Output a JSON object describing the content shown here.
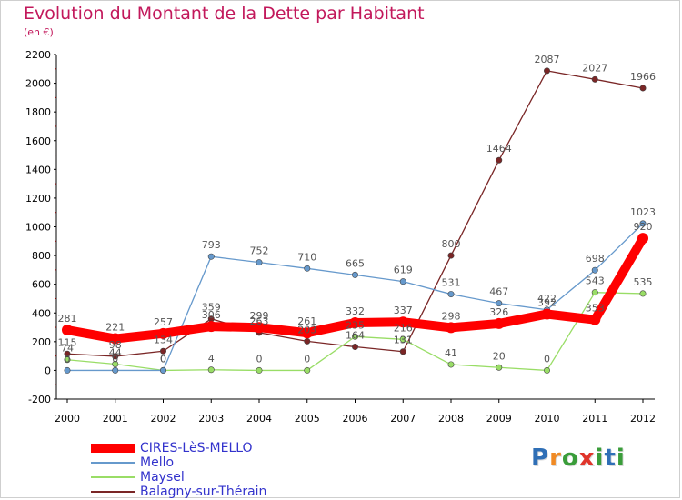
{
  "header": {
    "title": "Evolution du Montant de la Dette par Habitant",
    "unit": "(en €)"
  },
  "logo": {
    "text": "Proxiti",
    "letters": [
      "P",
      "r",
      "o",
      "x",
      "i",
      "t",
      "i"
    ],
    "colors": [
      "#2f6fb6",
      "#f08a24",
      "#3a9d3a",
      "#e0352b",
      "#3a9d3a",
      "#2f6fb6",
      "#3a9d3a"
    ]
  },
  "chart_data": {
    "type": "line",
    "x": [
      "2000",
      "2001",
      "2002",
      "2003",
      "2004",
      "2005",
      "2006",
      "2007",
      "2008",
      "2009",
      "2010",
      "2011",
      "2012"
    ],
    "ylim": [
      -200,
      2200
    ],
    "yticks": [
      -200,
      0,
      200,
      400,
      600,
      800,
      1000,
      1200,
      1400,
      1600,
      1800,
      2000,
      2200
    ],
    "grid": false,
    "legend_position": "bottom-left",
    "series": [
      {
        "name": "CIRES-LèS-MELLO",
        "color": "#ff0000",
        "values": [
          281,
          221,
          257,
          306,
          299,
          261,
          332,
          337,
          298,
          326,
          392,
          353,
          920
        ],
        "labels": [
          "281",
          "221",
          "257",
          "306",
          "299",
          "261",
          "332",
          "337",
          "298",
          "326",
          "392",
          "353",
          "920"
        ]
      },
      {
        "name": "Mello",
        "color": "#6699cc",
        "values": [
          0,
          0,
          0,
          793,
          752,
          710,
          665,
          619,
          531,
          467,
          422,
          698,
          1023
        ],
        "labels": [
          "0",
          "0",
          "0",
          "793",
          "752",
          "710",
          "665",
          "619",
          "531",
          "467",
          "422",
          "698",
          "1023"
        ]
      },
      {
        "name": "Maysel",
        "color": "#99dd66",
        "values": [
          74,
          44,
          0,
          4,
          0,
          0,
          235,
          216,
          41,
          20,
          0,
          543,
          535
        ],
        "labels": [
          "74",
          "44",
          "0",
          "4",
          "0",
          "0",
          "235",
          "216",
          "41",
          "20",
          "0",
          "543",
          "535"
        ]
      },
      {
        "name": "Balagny-sur-Thérain",
        "color": "#7a2626",
        "values": [
          115,
          98,
          134,
          359,
          263,
          203,
          164,
          131,
          800,
          1464,
          2087,
          2027,
          1966
        ],
        "labels": [
          "115",
          "98",
          "134",
          "359",
          "263",
          "203",
          "164",
          "131",
          "800",
          "1464",
          "2087",
          "2027",
          "1966"
        ]
      }
    ]
  }
}
